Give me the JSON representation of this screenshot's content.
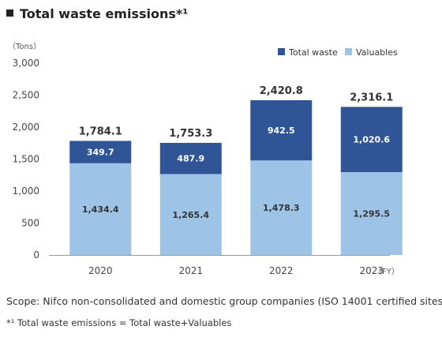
{
  "title_prefix": "Total waste emissions",
  "title_sup": "*¹",
  "scope": "Scope: Nifco non-consolidated and domestic group companies (ISO 14001 certified sites)",
  "note": "*¹ Total waste emissions = Total waste+Valuables",
  "colors": {
    "valuables": "#9dc3e6",
    "total_waste": "#2f5597"
  },
  "chart_data": {
    "type": "bar",
    "stacked": true,
    "categories": [
      "2020",
      "2021",
      "2022",
      "2023"
    ],
    "series": [
      {
        "name": "Valuables",
        "values": [
          1434.4,
          1265.4,
          1478.3,
          1295.5
        ],
        "labels": [
          "1,434.4",
          "1,265.4",
          "1,478.3",
          "1,295.5"
        ]
      },
      {
        "name": "Total waste",
        "values": [
          349.7,
          487.9,
          942.5,
          1020.6
        ],
        "labels": [
          "349.7",
          "487.9",
          "942.5",
          "1,020.6"
        ]
      }
    ],
    "totals": [
      1784.1,
      1753.3,
      2420.8,
      2316.1
    ],
    "total_labels": [
      "1,784.1",
      "1,753.3",
      "2,420.8",
      "2,316.1"
    ],
    "yticks": [
      0,
      500,
      1000,
      1500,
      2000,
      2500,
      3000
    ],
    "ytick_labels": [
      "0",
      "500",
      "1,000",
      "1,500",
      "2,000",
      "2,500",
      "3,000"
    ],
    "ylim": [
      0,
      3000
    ],
    "ylabel": "（Tons）",
    "xlabel": "（FY）",
    "legend": [
      "Total waste",
      "Valuables"
    ],
    "legend_position": "top-right",
    "grid": false
  }
}
